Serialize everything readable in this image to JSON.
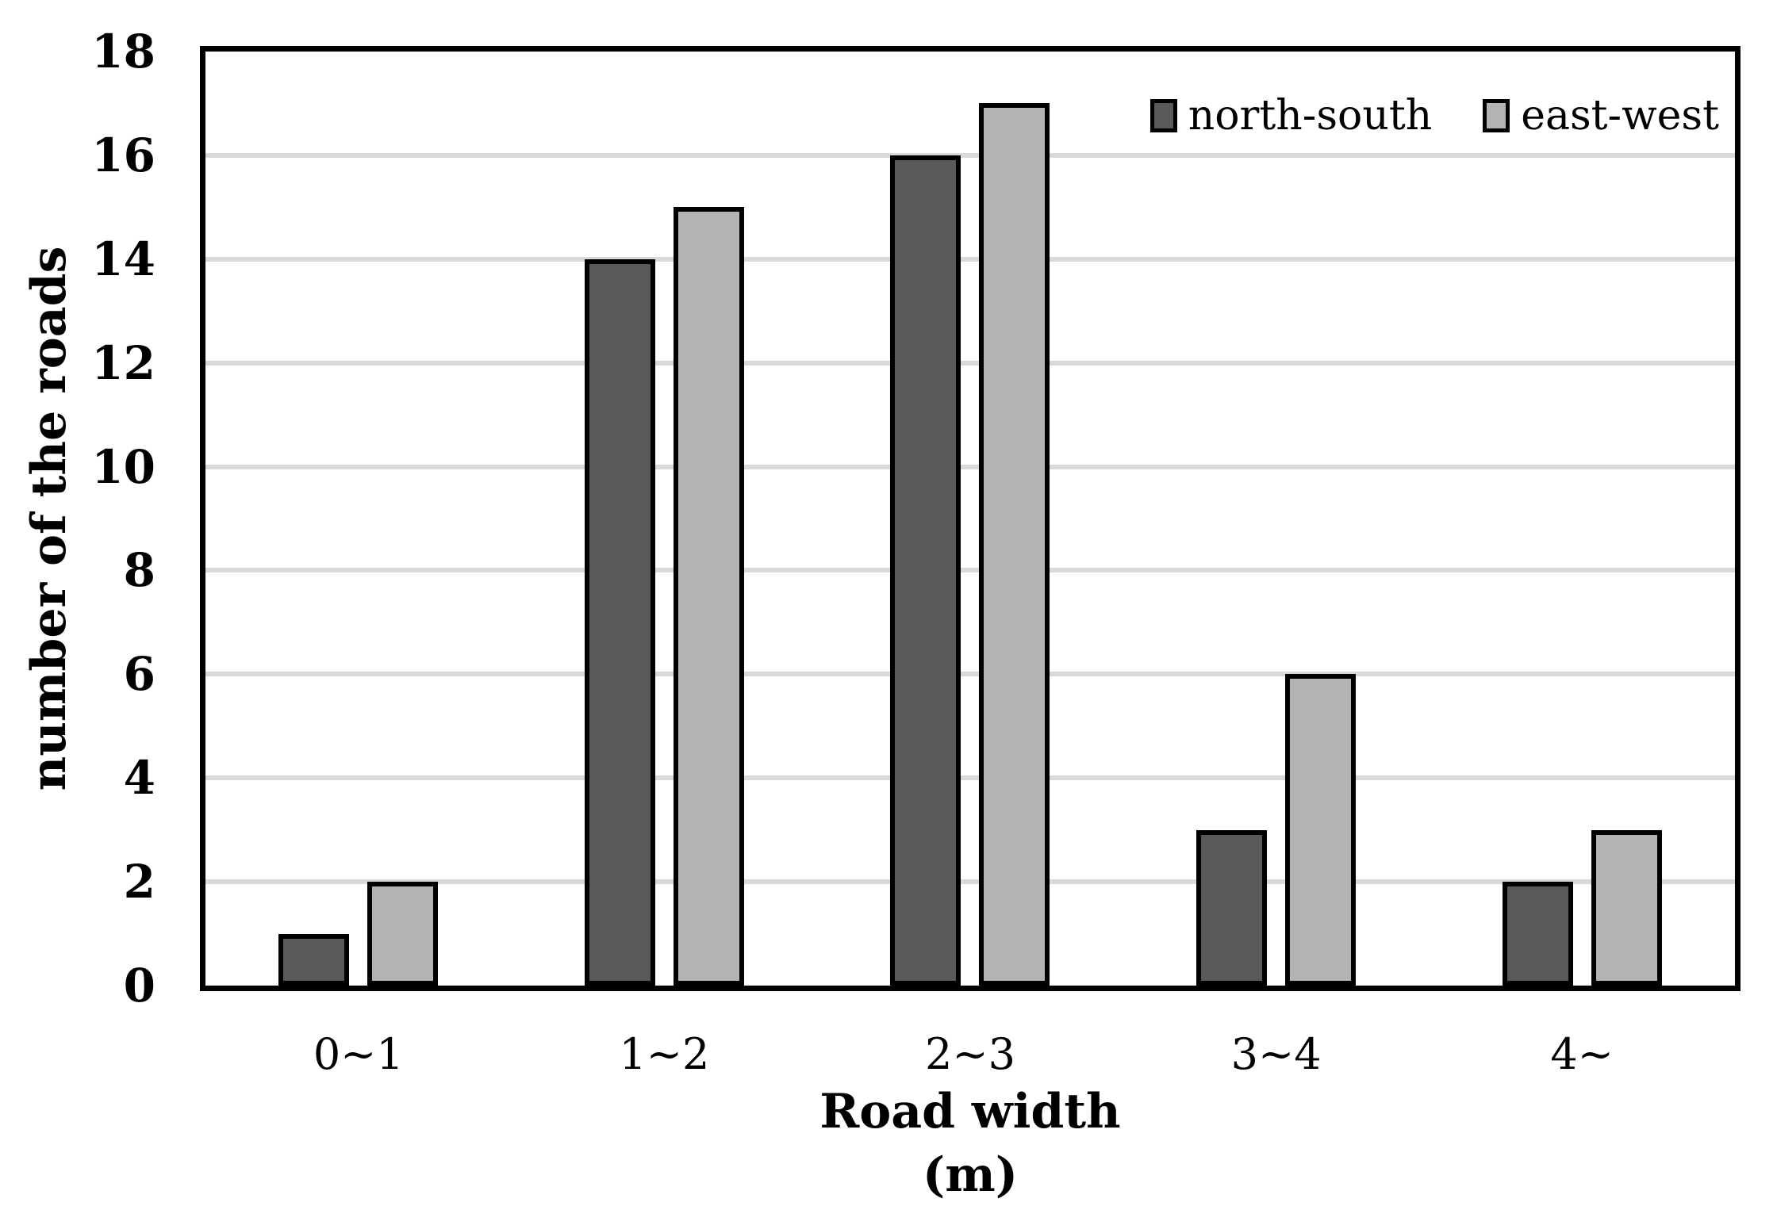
{
  "chart_data": {
    "type": "bar",
    "title": "",
    "categories": [
      "0~1",
      "1~2",
      "2~3",
      "3~4",
      "4~"
    ],
    "series": [
      {
        "name": "north-south",
        "color": "#595959",
        "values": [
          1,
          14,
          16,
          3,
          2
        ]
      },
      {
        "name": "east-west",
        "color": "#b3b3b3",
        "values": [
          2,
          15,
          17,
          6,
          3
        ]
      }
    ],
    "xlabel": "Road width",
    "xlabel_unit": "(m)",
    "ylabel": "number of the roads",
    "ylim": [
      0,
      18
    ],
    "ytick_step": 2,
    "yticks": [
      0,
      2,
      4,
      6,
      8,
      10,
      12,
      14,
      16,
      18
    ],
    "grid": "horizontal",
    "gridline_color": "#d9d9d9",
    "frame_color": "#000000",
    "bar_outline_color": "#000000",
    "background_color": "#ffffff",
    "legend_position": "top-right-inside"
  }
}
